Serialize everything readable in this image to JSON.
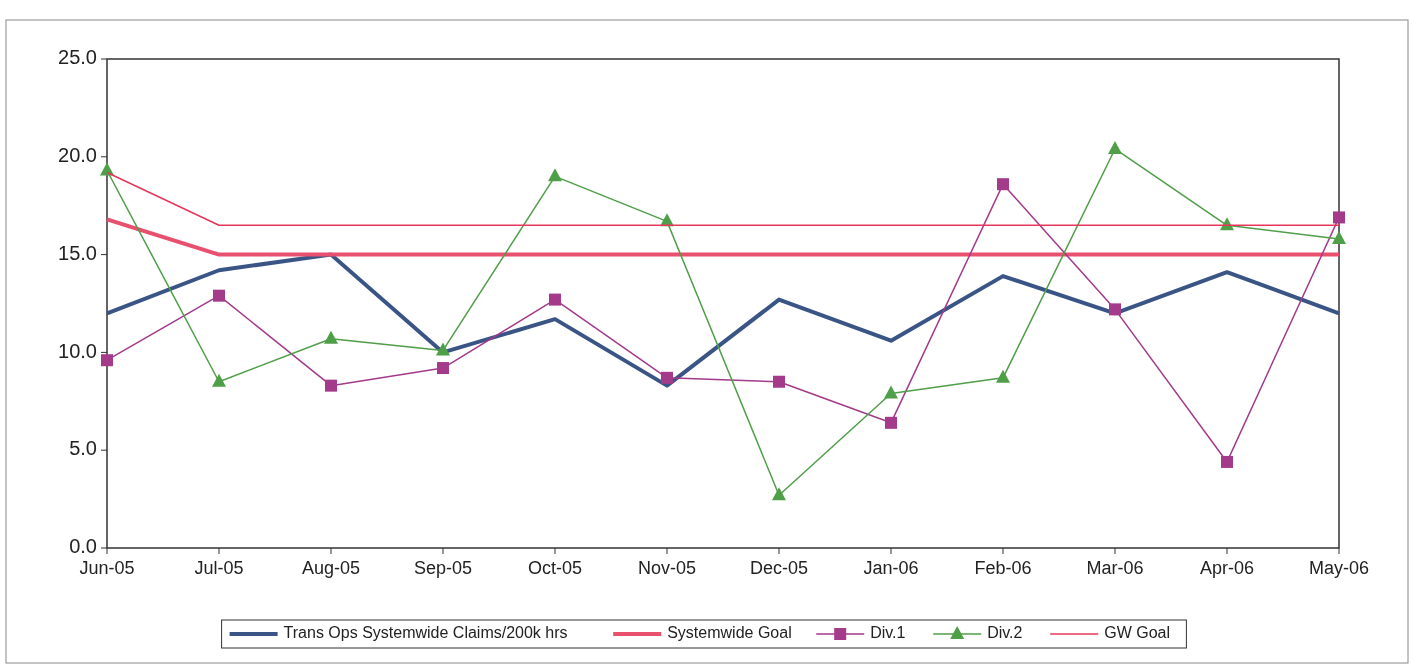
{
  "chart_data": {
    "type": "line",
    "categories": [
      "Jun-05",
      "Jul-05",
      "Aug-05",
      "Sep-05",
      "Oct-05",
      "Nov-05",
      "Dec-05",
      "Jan-06",
      "Feb-06",
      "Mar-06",
      "Apr-06",
      "May-06"
    ],
    "ylim": [
      0,
      25
    ],
    "yticks": [
      {
        "value": 0,
        "label": "0.0"
      },
      {
        "value": 5,
        "label": "5.0"
      },
      {
        "value": 10,
        "label": "10.0"
      },
      {
        "value": 15,
        "label": "15.0"
      },
      {
        "value": 20,
        "label": "20.0"
      },
      {
        "value": 25,
        "label": "25.0"
      }
    ],
    "grid": false,
    "legend": "bottom",
    "series": [
      {
        "name": "Trans Ops Systemwide Claims/200k hrs",
        "color": "#3a5585",
        "marker": "none",
        "values": [
          12.0,
          14.2,
          15.0,
          10.0,
          11.7,
          8.3,
          12.7,
          10.6,
          13.9,
          12.0,
          14.1,
          12.0
        ]
      },
      {
        "name": "Systemwide Goal",
        "color": "#e8506e",
        "marker": "none",
        "values": [
          16.8,
          15.0,
          15.0,
          15.0,
          15.0,
          15.0,
          15.0,
          15.0,
          15.0,
          15.0,
          15.0,
          15.0
        ]
      },
      {
        "name": "Div.1",
        "color": "#a33a8a",
        "marker": "square",
        "values": [
          9.6,
          12.9,
          8.3,
          9.2,
          12.7,
          8.7,
          8.5,
          6.4,
          18.6,
          12.2,
          4.4,
          16.9
        ]
      },
      {
        "name": "Div.2",
        "color": "#4f9e48",
        "marker": "triangle",
        "values": [
          19.3,
          8.5,
          10.7,
          10.1,
          19.0,
          16.7,
          2.7,
          7.9,
          8.7,
          20.4,
          16.5,
          15.8
        ]
      },
      {
        "name": "GW Goal",
        "color": "#e8365a",
        "marker": "none",
        "values": [
          19.2,
          16.5,
          16.5,
          16.5,
          16.5,
          16.5,
          16.5,
          16.5,
          16.5,
          16.5,
          16.5,
          16.5
        ]
      }
    ]
  }
}
